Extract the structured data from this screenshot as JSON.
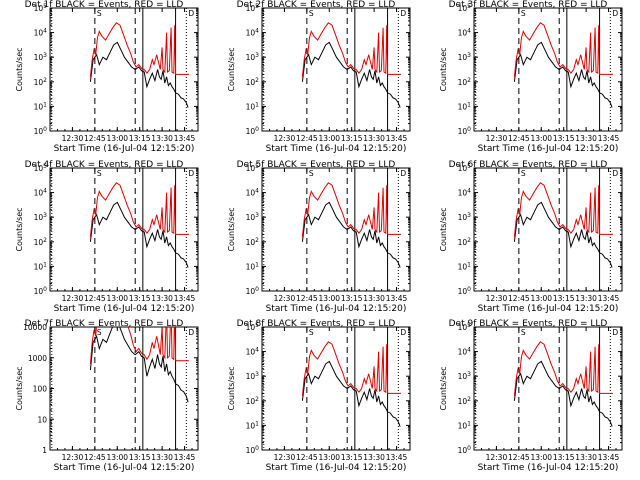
{
  "figure": {
    "background": "#ffffff"
  },
  "chart_data": [
    {
      "type": "line",
      "title": "Det 1f BLACK = Events, RED = LLD",
      "xlabel": "Start Time (16-Jul-04 12:15:20)",
      "ylabel": "Counts/sec",
      "xlim": [
        12.25,
        13.9
      ],
      "ylim": [
        1,
        100000
      ],
      "yscale": "log",
      "xticks": [
        "12:30",
        "12:45",
        "13:00",
        "13:15",
        "13:30",
        "13:45"
      ],
      "yticks": [
        "10^0",
        "10^1",
        "10^2",
        "10^3",
        "10^4",
        "10^5"
      ],
      "labels_x": [
        "12:30",
        "12:45",
        "13:00",
        "13:15",
        "13:30",
        "13:45"
      ],
      "labels_y": [
        "0",
        "1",
        "2",
        "3",
        "4",
        "5"
      ],
      "colors": {
        "events": "#000000",
        "lld": "#e00000"
      }
    },
    {
      "type": "line",
      "title": "Det 2f BLACK = Events, RED = LLD",
      "xlabel": "Start Time (16-Jul-04 12:15:20)",
      "ylabel": "Counts/sec",
      "xlim": [
        12.25,
        13.9
      ],
      "ylim": [
        1,
        100000
      ],
      "yscale": "log",
      "labels_x": [
        "12:30",
        "12:45",
        "13:00",
        "13:15",
        "13:30",
        "13:45"
      ],
      "labels_y": [
        "0",
        "1",
        "2",
        "3",
        "4",
        "5"
      ],
      "colors": {
        "events": "#000000",
        "lld": "#e00000"
      }
    },
    {
      "type": "line",
      "title": "Det 3f BLACK = Events, RED = LLD",
      "xlabel": "Start Time (16-Jul-04 12:15:20)",
      "ylabel": "Counts/sec",
      "xlim": [
        12.25,
        13.9
      ],
      "ylim": [
        1,
        100000
      ],
      "yscale": "log",
      "labels_x": [
        "12:30",
        "12:45",
        "13:00",
        "13:15",
        "13:30",
        "13:45"
      ],
      "labels_y": [
        "0",
        "1",
        "2",
        "3",
        "4",
        "5"
      ],
      "colors": {
        "events": "#000000",
        "lld": "#e00000"
      }
    },
    {
      "type": "line",
      "title": "Det 4f BLACK = Events, RED = LLD",
      "xlabel": "Start Time (16-Jul-04 12:15:20)",
      "ylabel": "Counts/sec",
      "xlim": [
        12.25,
        13.9
      ],
      "ylim": [
        1,
        100000
      ],
      "yscale": "log",
      "labels_x": [
        "12:30",
        "12:45",
        "13:00",
        "13:15",
        "13:30",
        "13:45"
      ],
      "labels_y": [
        "0",
        "1",
        "2",
        "3",
        "4",
        "5"
      ],
      "colors": {
        "events": "#000000",
        "lld": "#e00000"
      }
    },
    {
      "type": "line",
      "title": "Det 5f BLACK = Events, RED = LLD",
      "xlabel": "Start Time (16-Jul-04 12:15:20)",
      "ylabel": "Counts/sec",
      "xlim": [
        12.25,
        13.9
      ],
      "ylim": [
        1,
        100000
      ],
      "yscale": "log",
      "labels_x": [
        "12:30",
        "12:45",
        "13:00",
        "13:15",
        "13:30",
        "13:45"
      ],
      "labels_y": [
        "0",
        "1",
        "2",
        "3",
        "4",
        "5"
      ],
      "colors": {
        "events": "#000000",
        "lld": "#e00000"
      }
    },
    {
      "type": "line",
      "title": "Det 6f BLACK = Events, RED = LLD",
      "xlabel": "Start Time (16-Jul-04 12:15:20)",
      "ylabel": "Counts/sec",
      "xlim": [
        12.25,
        13.9
      ],
      "ylim": [
        1,
        100000
      ],
      "yscale": "log",
      "labels_x": [
        "12:30",
        "12:45",
        "13:00",
        "13:15",
        "13:30",
        "13:45"
      ],
      "labels_y": [
        "0",
        "1",
        "2",
        "3",
        "4",
        "5"
      ],
      "colors": {
        "events": "#000000",
        "lld": "#e00000"
      }
    },
    {
      "type": "line",
      "title": "Det 7f BLACK = Events, RED = LLD",
      "xlabel": "Start Time (16-Jul-04 12:15:20)",
      "ylabel": "Counts/sec",
      "xlim": [
        12.25,
        13.9
      ],
      "ylim": [
        1,
        10000
      ],
      "yscale": "log",
      "labels_x": [
        "12:30",
        "12:45",
        "13:00",
        "13:15",
        "13:30",
        "13:45"
      ],
      "labels_y": [
        "1",
        "10",
        "100",
        "1000",
        "10000"
      ],
      "colors": {
        "events": "#000000",
        "lld": "#e00000"
      }
    },
    {
      "type": "line",
      "title": "Det 8f BLACK = Events, RED = LLD",
      "xlabel": "Start Time (16-Jul-04 12:15:20)",
      "ylabel": "Counts/sec",
      "xlim": [
        12.25,
        13.9
      ],
      "ylim": [
        1,
        100000
      ],
      "yscale": "log",
      "labels_x": [
        "12:30",
        "12:45",
        "13:00",
        "13:15",
        "13:30",
        "13:45"
      ],
      "labels_y": [
        "0",
        "1",
        "2",
        "3",
        "4",
        "5"
      ],
      "colors": {
        "events": "#000000",
        "lld": "#e00000"
      }
    },
    {
      "type": "line",
      "title": "Det 9f BLACK = Events, RED = LLD",
      "xlabel": "Start Time (16-Jul-04 12:15:20)",
      "ylabel": "Counts/sec",
      "xlim": [
        12.25,
        13.9
      ],
      "ylim": [
        1,
        100000
      ],
      "yscale": "log",
      "labels_x": [
        "12:30",
        "12:45",
        "13:00",
        "13:15",
        "13:30",
        "13:45"
      ],
      "labels_y": [
        "0",
        "1",
        "2",
        "3",
        "4",
        "5"
      ],
      "colors": {
        "events": "#000000",
        "lld": "#e00000"
      }
    }
  ],
  "shared": {
    "tick_hours": [
      12.5,
      12.75,
      13.0,
      13.25,
      13.5,
      13.75
    ],
    "vlines": [
      {
        "x": 12.27,
        "style": "dotted"
      },
      {
        "x": 12.75,
        "style": "dashed"
      },
      {
        "x": 13.2,
        "style": "dashed"
      },
      {
        "x": 13.285,
        "style": "solid"
      },
      {
        "x": 13.65,
        "style": "solid"
      },
      {
        "x": 13.77,
        "style": "dotted"
      }
    ],
    "lld_series": [
      [
        12.7,
        2.2
      ],
      [
        12.72,
        2.9
      ],
      [
        12.74,
        3.3
      ],
      [
        12.76,
        3.1
      ],
      [
        12.78,
        3.8
      ],
      [
        12.8,
        4.05
      ],
      [
        12.83,
        3.85
      ],
      [
        12.87,
        3.7
      ],
      [
        12.91,
        3.95
      ],
      [
        12.95,
        4.2
      ],
      [
        12.99,
        4.4
      ],
      [
        13.03,
        4.3
      ],
      [
        13.07,
        3.9
      ],
      [
        13.11,
        3.5
      ],
      [
        13.15,
        3.15
      ],
      [
        13.18,
        2.8
      ],
      [
        13.21,
        2.6
      ],
      [
        13.24,
        2.7
      ],
      [
        13.27,
        2.55
      ],
      [
        13.3,
        2.5
      ],
      [
        13.33,
        2.35
      ],
      [
        13.36,
        2.5
      ],
      [
        13.39,
        2.9
      ],
      [
        13.41,
        2.7
      ],
      [
        13.44,
        3.1
      ],
      [
        13.46,
        2.8
      ],
      [
        13.48,
        2.5
      ],
      [
        13.5,
        3.4
      ],
      [
        13.51,
        2.5
      ],
      [
        13.53,
        2.4
      ],
      [
        13.55,
        4.0
      ],
      [
        13.56,
        2.4
      ],
      [
        13.58,
        2.45
      ],
      [
        13.6,
        4.2
      ],
      [
        13.61,
        2.4
      ],
      [
        13.63,
        2.35
      ],
      [
        13.64,
        4.3
      ],
      [
        13.65,
        2.3
      ],
      [
        13.68,
        2.3
      ],
      [
        13.72,
        2.3
      ],
      [
        13.76,
        2.3
      ],
      [
        13.8,
        2.3
      ]
    ],
    "events_series": [
      [
        12.7,
        2.0
      ],
      [
        12.73,
        2.9
      ],
      [
        12.77,
        3.1
      ],
      [
        12.8,
        2.7
      ],
      [
        12.84,
        3.0
      ],
      [
        12.88,
        2.9
      ],
      [
        12.92,
        3.2
      ],
      [
        12.96,
        3.5
      ],
      [
        13.0,
        3.6
      ],
      [
        13.04,
        3.3
      ],
      [
        13.08,
        3.0
      ],
      [
        13.12,
        2.8
      ],
      [
        13.16,
        2.6
      ],
      [
        13.2,
        2.5
      ],
      [
        13.24,
        2.6
      ],
      [
        13.27,
        2.45
      ],
      [
        13.3,
        2.4
      ],
      [
        13.33,
        1.8
      ],
      [
        13.36,
        2.1
      ],
      [
        13.39,
        2.35
      ],
      [
        13.42,
        2.05
      ],
      [
        13.45,
        2.5
      ],
      [
        13.47,
        2.2
      ],
      [
        13.49,
        2.1
      ],
      [
        13.51,
        2.45
      ],
      [
        13.53,
        1.95
      ],
      [
        13.55,
        2.2
      ],
      [
        13.57,
        1.85
      ],
      [
        13.59,
        1.95
      ],
      [
        13.61,
        1.8
      ],
      [
        13.63,
        1.7
      ],
      [
        13.65,
        1.55
      ],
      [
        13.68,
        1.5
      ],
      [
        13.71,
        1.35
      ],
      [
        13.74,
        1.3
      ],
      [
        13.77,
        1.15
      ],
      [
        13.79,
        0.95
      ]
    ]
  }
}
